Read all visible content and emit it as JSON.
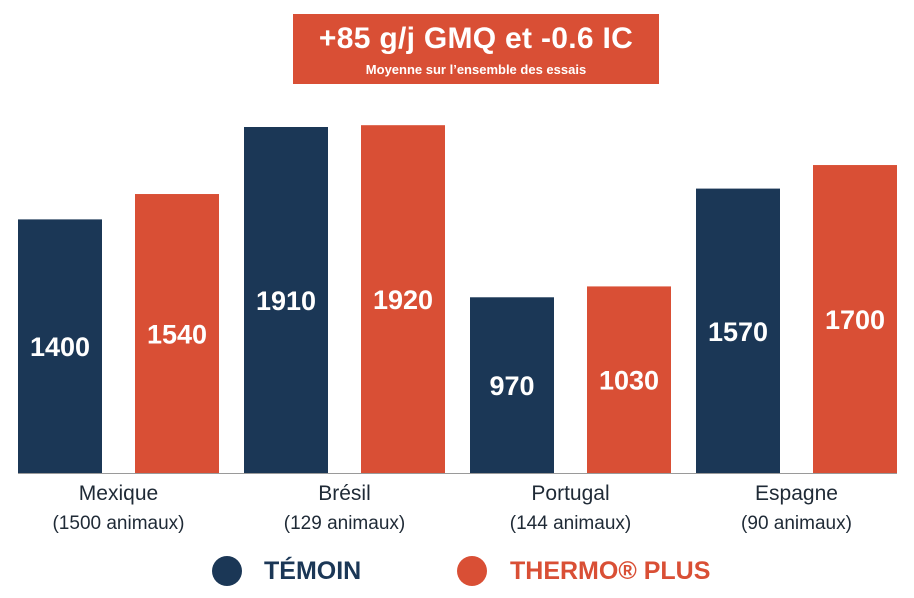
{
  "colors": {
    "temoin": "#1b3756",
    "thermo": "#d94f35"
  },
  "chart_data": {
    "type": "bar",
    "title": "+85 g/j GMQ et -0.6 IC",
    "subtitle": "Moyenne sur l’ensemble des essais",
    "categories": [
      "Mexique",
      "Brésil",
      "Portugal",
      "Espagne"
    ],
    "category_notes": [
      "(1500 animaux)",
      "(129 animaux)",
      "(144 animaux)",
      "(90 animaux)"
    ],
    "series": [
      {
        "name": "TÉMOIN",
        "values": [
          1400,
          1910,
          970,
          1570
        ]
      },
      {
        "name": "THERMO® PLUS",
        "values": [
          1540,
          1920,
          1030,
          1700
        ]
      }
    ],
    "legend_position": "bottom",
    "grid": false
  }
}
